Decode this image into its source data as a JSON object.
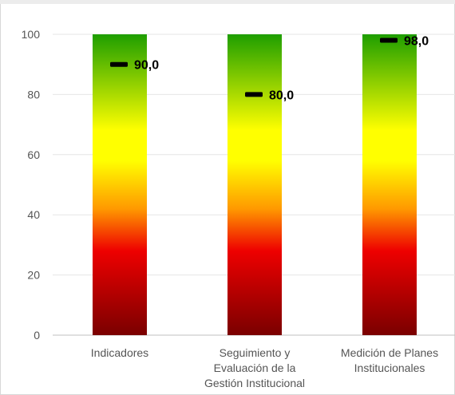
{
  "chart_data": {
    "type": "bar",
    "title": "",
    "xlabel": "",
    "ylabel": "",
    "ylim": [
      0,
      100
    ],
    "yticks": [
      0,
      20,
      40,
      60,
      80,
      100
    ],
    "grid": true,
    "categories": [
      [
        "Indicadores"
      ],
      [
        "Seguimiento y",
        "Evaluación de la",
        "Gestión Institucional"
      ],
      [
        "Medición de Planes",
        "Institucionales"
      ]
    ],
    "bar_values": [
      100,
      100,
      100
    ],
    "marker_values": [
      90.0,
      80.0,
      98.0
    ],
    "marker_labels": [
      "90,0",
      "80,0",
      "98,0"
    ],
    "colors": {
      "gradient_top": "#1e9e00",
      "gradient_yellow": "#ffff00",
      "gradient_orange": "#ff9900",
      "gradient_red": "#ee0000",
      "gradient_bottom": "#7a0000",
      "marker": "#000000",
      "grid": "#e6e6e6",
      "axis": "#bfbfbf"
    }
  }
}
